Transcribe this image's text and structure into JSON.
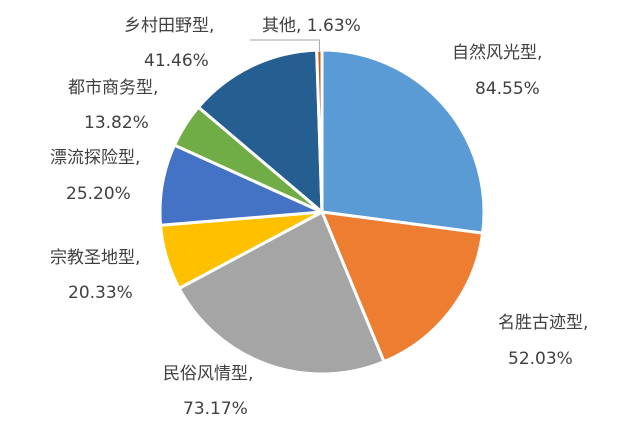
{
  "chart_data": {
    "type": "pie",
    "title": "",
    "slices": [
      {
        "name": "自然风光型",
        "label": "自然风光型,",
        "value": 84.55,
        "display": "84.55%",
        "color": "#5B9BD5"
      },
      {
        "name": "名胜古迹型",
        "label": "名胜古迹型,",
        "value": 52.03,
        "display": "52.03%",
        "color": "#ED7D31"
      },
      {
        "name": "民俗风情型",
        "label": "民俗风情型,",
        "value": 73.17,
        "display": "73.17%",
        "color": "#A5A5A5"
      },
      {
        "name": "宗教圣地型",
        "label": "宗教圣地型,",
        "value": 20.33,
        "display": "20.33%",
        "color": "#FFC000"
      },
      {
        "name": "漂流探险型",
        "label": "漂流探险型,",
        "value": 25.2,
        "display": "25.20%",
        "color": "#4472C4"
      },
      {
        "name": "都市商务型",
        "label": "都市商务型,",
        "value": 13.82,
        "display": "13.82%",
        "color": "#70AD47"
      },
      {
        "name": "乡村田野型",
        "label": "乡村田野型,",
        "value": 41.46,
        "display": "41.46%",
        "color": "#255E91"
      },
      {
        "name": "其他",
        "label": "其他, 1.63%",
        "value": 1.63,
        "display": "",
        "color": "#C55A11"
      }
    ]
  }
}
